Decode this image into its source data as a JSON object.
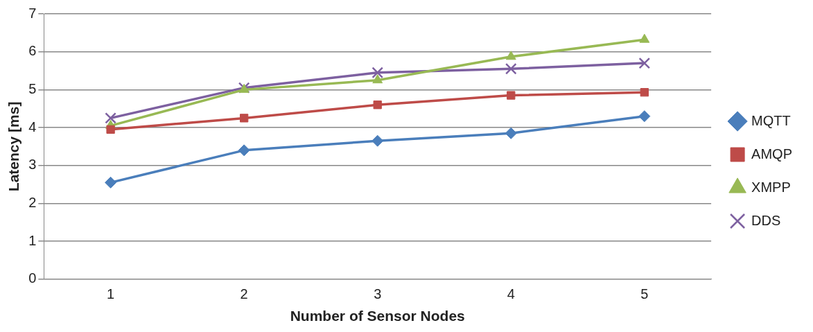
{
  "chart_data": {
    "type": "line",
    "xlabel": "Number of Sensor Nodes",
    "ylabel": "Latency [ms]",
    "categories": [
      "1",
      "2",
      "3",
      "4",
      "5"
    ],
    "ylim": [
      0,
      7
    ],
    "yticks": [
      0,
      1,
      2,
      3,
      4,
      5,
      6,
      7
    ],
    "grid": "y",
    "legend": "right",
    "series": [
      {
        "name": "MQTT",
        "color": "#4a7ebb",
        "marker": "diamond",
        "values": [
          2.55,
          3.4,
          3.65,
          3.85,
          4.3
        ]
      },
      {
        "name": "AMQP",
        "color": "#be4b48",
        "marker": "square",
        "values": [
          3.95,
          4.25,
          4.6,
          4.85,
          4.93
        ]
      },
      {
        "name": "XMPP",
        "color": "#98b954",
        "marker": "triangle",
        "values": [
          4.05,
          5.0,
          5.25,
          5.87,
          6.32
        ]
      },
      {
        "name": "DDS",
        "color": "#7d60a0",
        "marker": "cross",
        "values": [
          4.25,
          5.05,
          5.45,
          5.55,
          5.7
        ]
      }
    ]
  }
}
